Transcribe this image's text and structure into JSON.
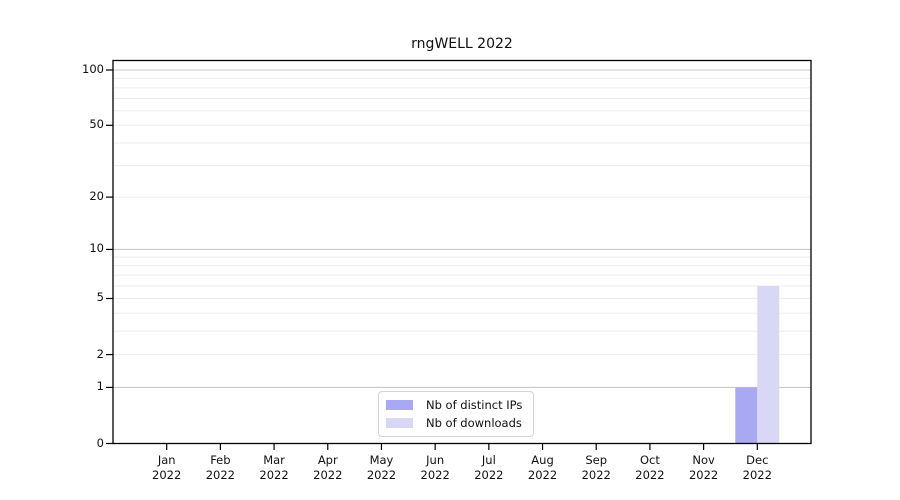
{
  "chart_data": {
    "type": "bar",
    "title": "rngWELL 2022",
    "categories": [
      "Jan 2022",
      "Feb 2022",
      "Mar 2022",
      "Apr 2022",
      "May 2022",
      "Jun 2022",
      "Jul 2022",
      "Aug 2022",
      "Sep 2022",
      "Oct 2022",
      "Nov 2022",
      "Dec 2022"
    ],
    "series": [
      {
        "name": "Nb of distinct IPs",
        "color": "#a8a8f3",
        "values": [
          0,
          0,
          0,
          0,
          0,
          0,
          0,
          0,
          0,
          0,
          0,
          1
        ]
      },
      {
        "name": "Nb of downloads",
        "color": "#d8d8f6",
        "values": [
          0,
          0,
          0,
          0,
          0,
          0,
          0,
          0,
          0,
          0,
          0,
          6
        ]
      }
    ],
    "xlabel": "",
    "ylabel": "",
    "yscale": "log1p",
    "ylim": [
      0,
      100
    ],
    "yticks": [
      0,
      1,
      2,
      5,
      10,
      20,
      50,
      100
    ],
    "major_gridlines": [
      1,
      10,
      100
    ],
    "minor_gridlines": [
      2,
      3,
      4,
      5,
      6,
      7,
      8,
      9,
      20,
      30,
      40,
      50,
      60,
      70,
      80,
      90
    ],
    "grid": true,
    "legend_position": "lower center"
  },
  "colors": {
    "background": "#ffffff",
    "frame": "#000000",
    "text": "#111111",
    "major_grid": "#c9c9c9",
    "minor_grid": "#ededed"
  }
}
